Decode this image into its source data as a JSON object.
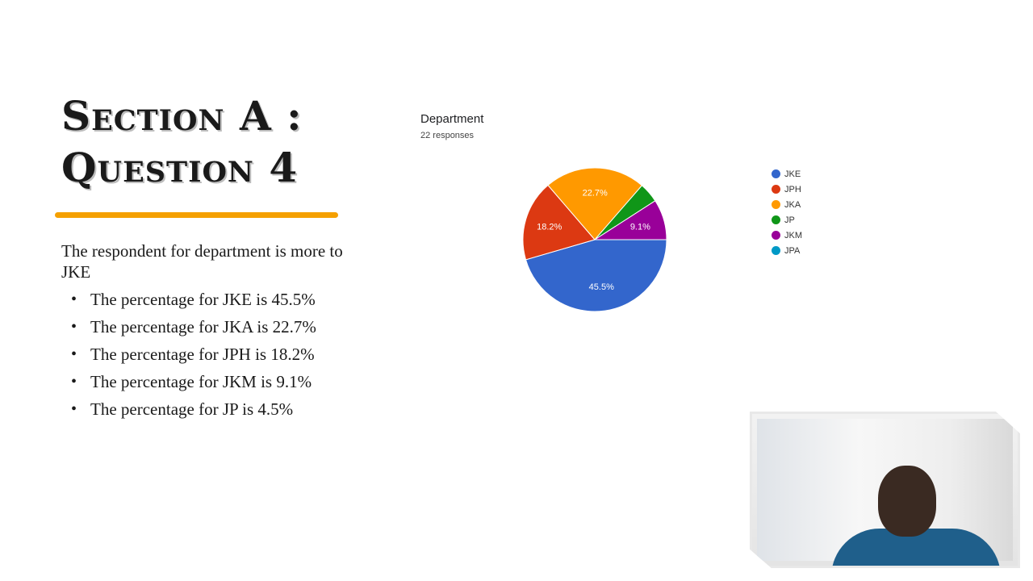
{
  "slide": {
    "title_line1": "Section A :",
    "title_line2": "Question 4",
    "intro": "The respondent for department is more to JKE",
    "bullets": [
      "The percentage for JKE is 45.5%",
      "The percentage for JKA is 22.7%",
      "The percentage for JPH is 18.2%",
      "The percentage for JKM is 9.1%",
      "The percentage for JP is 4.5%"
    ],
    "accent_color": "#f5a000"
  },
  "chart_data": {
    "type": "pie",
    "title": "Department",
    "subtitle": "22 responses",
    "legend_position": "right",
    "slices": [
      {
        "label": "JKE",
        "value": 45.5,
        "color": "#3366cc",
        "display": "45.5%"
      },
      {
        "label": "JPH",
        "value": 18.2,
        "color": "#dc3912",
        "display": "18.2%"
      },
      {
        "label": "JKA",
        "value": 22.7,
        "color": "#ff9900",
        "display": "22.7%"
      },
      {
        "label": "JP",
        "value": 4.5,
        "color": "#109618",
        "display": ""
      },
      {
        "label": "JKM",
        "value": 9.1,
        "color": "#990099",
        "display": "9.1%"
      },
      {
        "label": "JPA",
        "value": 0,
        "color": "#0099c6",
        "display": ""
      }
    ]
  },
  "webcam": {
    "label": "presenter-video"
  }
}
